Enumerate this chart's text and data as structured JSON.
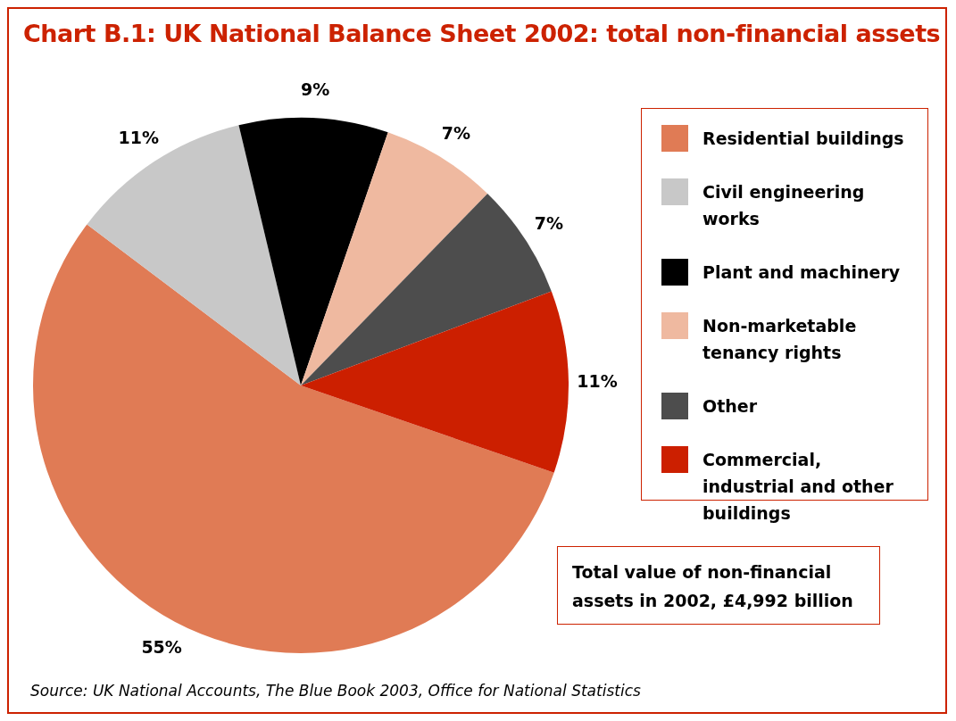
{
  "chart_data": {
    "type": "pie",
    "title": "Chart B.1: UK National Balance Sheet 2002: total non-financial assets",
    "categories": [
      "Residential buildings",
      "Civil engineering works",
      "Plant and machinery",
      "Non-marketable tenancy rights",
      "Other",
      "Commercial, industrial and other buildings"
    ],
    "values": [
      55,
      11,
      9,
      7,
      7,
      11
    ],
    "value_labels": [
      "55%",
      "11%",
      "9%",
      "7%",
      "7%",
      "11%"
    ],
    "colors": [
      "#e07b55",
      "#c8c8c8",
      "#000000",
      "#efb9a0",
      "#4d4d4d",
      "#cc1f00"
    ],
    "legend": "right",
    "annotations": [
      "Total value of non-financial assets in 2002, £4,992 billion",
      "Source: UK National Accounts, The Blue Book 2003, Office for National Statistics"
    ]
  }
}
